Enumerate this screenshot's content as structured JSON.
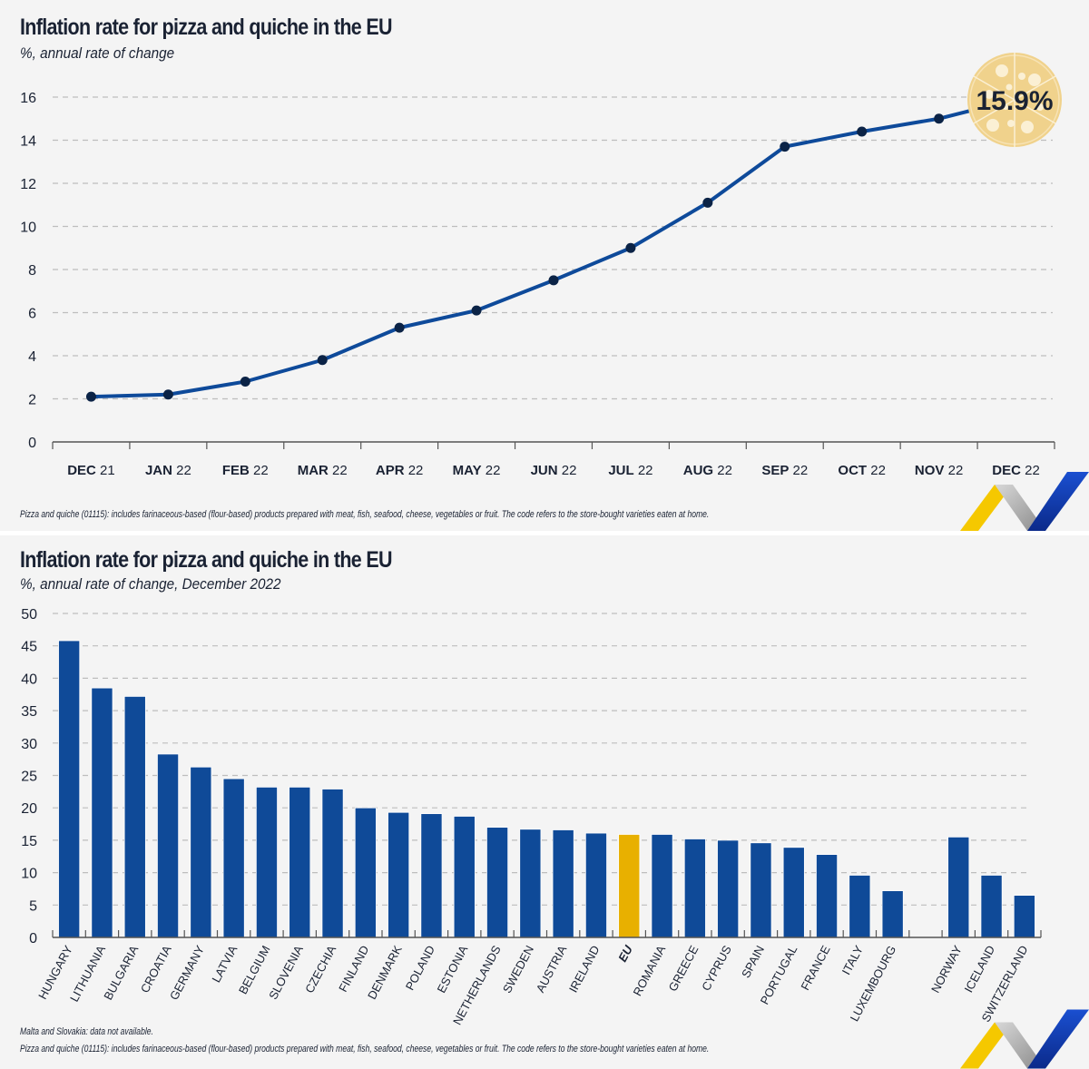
{
  "panels": [
    {
      "title": "Inflation rate for pizza and quiche in the EU",
      "subtitle": "%, annual rate of change",
      "note": "Pizza and quiche (01115): includes farinaceous-based (flour-based) products prepared with meat, fish, seafood, cheese, vegetables or fruit. The code refers to the store-bought varieties eaten at home.",
      "badge": "15.9%"
    },
    {
      "title": "Inflation rate for pizza and quiche in the EU",
      "subtitle": "%, annual rate of change, December 2022",
      "notes": [
        "Malta and Slovakia: data not available.",
        "Pizza and quiche (01115): includes farinaceous-based (flour-based) products prepared with meat, fish, seafood, cheese, vegetables or fruit.  The code refers to the store-bought varieties eaten at home."
      ]
    }
  ],
  "colors": {
    "line": "#0e4a9a",
    "marker": "#0b2346",
    "bar": "#0f4a98",
    "eu_bar": "#e8b000",
    "badge": "#f0d28c",
    "grid": "#bdbdbd",
    "text": "#1a2233"
  },
  "chart_data": [
    {
      "type": "line",
      "title": "Inflation rate for pizza and quiche in the EU",
      "subtitle": "%, annual rate of change",
      "xlabel": "",
      "ylabel": "%",
      "ylim": [
        0,
        16
      ],
      "yticks": [
        0,
        2,
        4,
        6,
        8,
        10,
        12,
        14,
        16
      ],
      "grid": true,
      "categories": [
        {
          "bold": "DEC",
          "rest": " 21"
        },
        {
          "bold": "JAN",
          "rest": " 22"
        },
        {
          "bold": "FEB",
          "rest": " 22"
        },
        {
          "bold": "MAR",
          "rest": " 22"
        },
        {
          "bold": "APR",
          "rest": " 22"
        },
        {
          "bold": "MAY",
          "rest": " 22"
        },
        {
          "bold": "JUN",
          "rest": " 22"
        },
        {
          "bold": "JUL",
          "rest": " 22"
        },
        {
          "bold": "AUG",
          "rest": " 22"
        },
        {
          "bold": "SEP",
          "rest": " 22"
        },
        {
          "bold": "OCT",
          "rest": " 22"
        },
        {
          "bold": "NOV",
          "rest": " 22"
        },
        {
          "bold": "DEC",
          "rest": " 22"
        }
      ],
      "values": [
        2.1,
        2.2,
        2.8,
        3.8,
        5.3,
        6.1,
        7.5,
        9.0,
        11.1,
        13.7,
        14.4,
        15.0,
        15.9
      ],
      "annotation": "15.9%"
    },
    {
      "type": "bar",
      "title": "Inflation rate for pizza and quiche in the EU",
      "subtitle": "%, annual rate of change, December 2022",
      "xlabel": "",
      "ylabel": "%",
      "ylim": [
        0,
        50
      ],
      "yticks": [
        0,
        5,
        10,
        15,
        20,
        25,
        30,
        35,
        40,
        45,
        50
      ],
      "grid": true,
      "categories": [
        "HUNGARY",
        "LITHUANIA",
        "BULGARIA",
        "CROATIA",
        "GERMANY",
        "LATVIA",
        "BELGIUM",
        "SLOVENIA",
        "CZECHIA",
        "FINLAND",
        "DENMARK",
        "POLAND",
        "ESTONIA",
        "NETHERLANDS",
        "SWEDEN",
        "AUSTRIA",
        "IRELAND",
        "EU",
        "ROMANIA",
        "GREECE",
        "CYPRUS",
        "SPAIN",
        "PORTUGAL",
        "FRANCE",
        "ITALY",
        "LUXEMBOURG",
        "",
        "NORWAY",
        "ICELAND",
        "SWITZERLAND"
      ],
      "values": [
        45.8,
        38.5,
        37.2,
        28.3,
        26.3,
        24.5,
        23.2,
        23.2,
        22.9,
        20.0,
        19.3,
        19.1,
        18.7,
        17.0,
        16.7,
        16.6,
        16.1,
        15.9,
        15.9,
        15.2,
        15.0,
        14.6,
        13.9,
        12.8,
        9.6,
        7.2,
        null,
        15.5,
        9.6,
        6.5
      ],
      "highlight": "EU"
    }
  ]
}
